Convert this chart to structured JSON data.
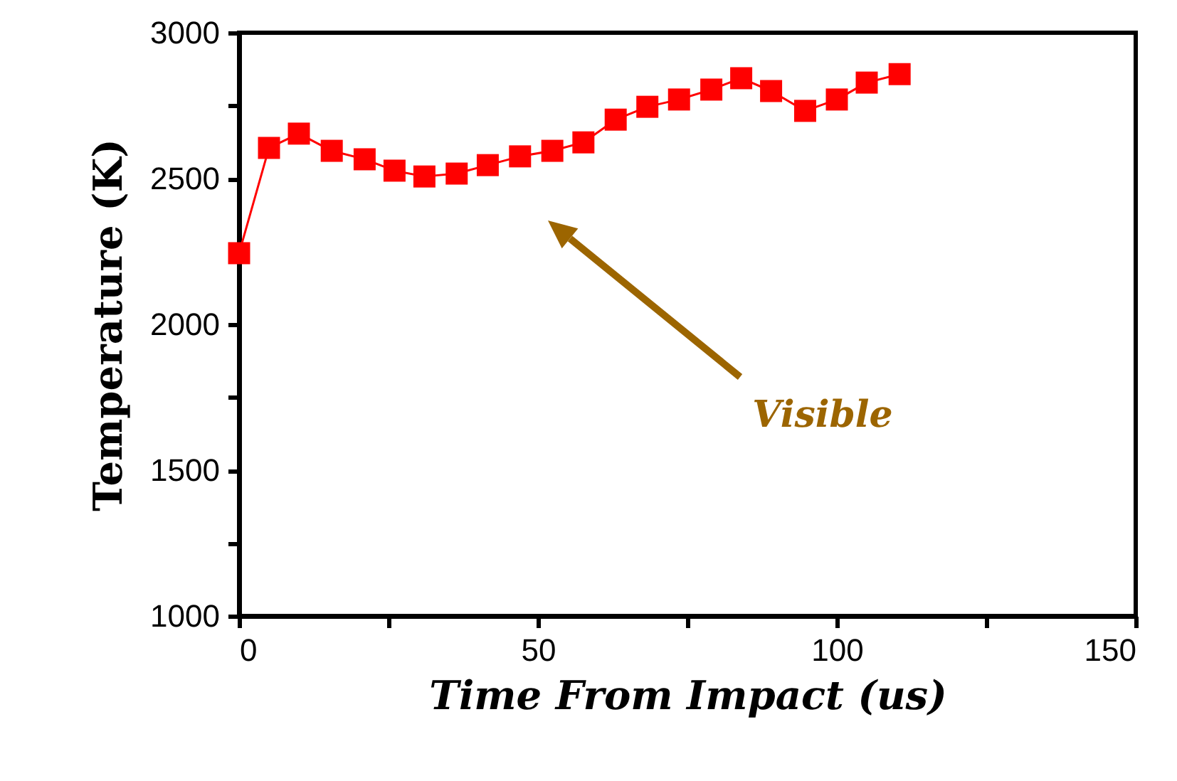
{
  "chart_data": {
    "type": "line",
    "xlabel": "Time From Impact (us)",
    "ylabel": "Temperature (K)",
    "xlim": [
      0,
      150
    ],
    "xticks": [
      0,
      {
        "value": 25,
        "label": null
      },
      50,
      {
        "value": 75,
        "label": null
      },
      100,
      {
        "value": 125,
        "label": null
      },
      150
    ],
    "ylim": [
      1000,
      3000
    ],
    "yticks": [
      1000,
      {
        "value": 1250,
        "label": null
      },
      1500,
      {
        "value": 1750,
        "label": null
      },
      2000,
      {
        "value": 2250,
        "label": null
      },
      2500,
      {
        "value": 2750,
        "label": null
      },
      3000
    ],
    "grid": false,
    "marker": "square",
    "line_style": "solid",
    "annotations": [
      "Visible"
    ],
    "series": [
      {
        "color": "#ff0000",
        "x": [
          0,
          5,
          10,
          15.5,
          21,
          26,
          31,
          36.4,
          41.6,
          47,
          52.4,
          57.6,
          63,
          68.3,
          73.6,
          79,
          84,
          89,
          94.7,
          100,
          105,
          110.5
        ],
        "values": [
          2244,
          2605,
          2654,
          2595,
          2566,
          2527,
          2507,
          2517,
          2546,
          2576,
          2595,
          2624,
          2702,
          2746,
          2771,
          2805,
          2844,
          2800,
          2732,
          2771,
          2829,
          2858
        ]
      }
    ]
  }
}
